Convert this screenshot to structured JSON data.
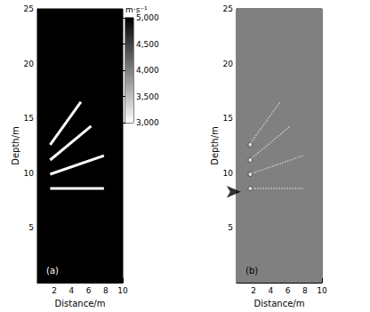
{
  "chart_data": [
    {
      "type": "velocity_model",
      "label": "(a)",
      "xlabel": "Distance/m",
      "ylabel": "Depth/m",
      "xlim": [
        0,
        10
      ],
      "ylim": [
        0,
        25
      ],
      "xticks": [
        2,
        4,
        6,
        8,
        10
      ],
      "yticks": [
        5,
        10,
        15,
        20,
        25
      ],
      "background_value": 5000,
      "reflectors": [
        {
          "x": [
            1.5,
            7.8
          ],
          "y": [
            8.6,
            8.6
          ],
          "value": 3000
        },
        {
          "x": [
            1.5,
            7.8
          ],
          "y": [
            9.9,
            11.6
          ],
          "value": 3000
        },
        {
          "x": [
            1.5,
            6.3
          ],
          "y": [
            11.2,
            14.3
          ],
          "value": 3000
        },
        {
          "x": [
            1.5,
            5.1
          ],
          "y": [
            12.6,
            16.5
          ],
          "value": 3000
        }
      ],
      "colorbar": {
        "label": "m·s⁻¹",
        "range": [
          3000,
          5000
        ],
        "ticks": [
          3000,
          3500,
          4000,
          4500,
          5000
        ]
      }
    },
    {
      "type": "image",
      "label": "(b)",
      "xlabel": "Distance/m",
      "ylabel": "Depth/m",
      "xlim": [
        0,
        10
      ],
      "ylim": [
        0,
        25
      ],
      "xticks": [
        2,
        4,
        6,
        8,
        10
      ],
      "yticks": [
        5,
        10,
        15,
        20,
        25
      ],
      "color": "#808080",
      "line_style": "dotted",
      "reflectors": [
        {
          "x": [
            1.5,
            7.8
          ],
          "y": [
            8.6,
            8.6
          ]
        },
        {
          "x": [
            1.5,
            7.8
          ],
          "y": [
            9.9,
            11.6
          ]
        },
        {
          "x": [
            1.5,
            6.3
          ],
          "y": [
            11.2,
            14.3
          ]
        },
        {
          "x": [
            1.5,
            5.1
          ],
          "y": [
            12.6,
            16.5
          ]
        }
      ],
      "diffractors": {
        "x": [
          1.6,
          1.6,
          1.6,
          1.6
        ],
        "y": [
          8.6,
          9.9,
          11.2,
          12.6
        ]
      },
      "arrow": {
        "x": 0.5,
        "y": 8.3
      }
    }
  ]
}
